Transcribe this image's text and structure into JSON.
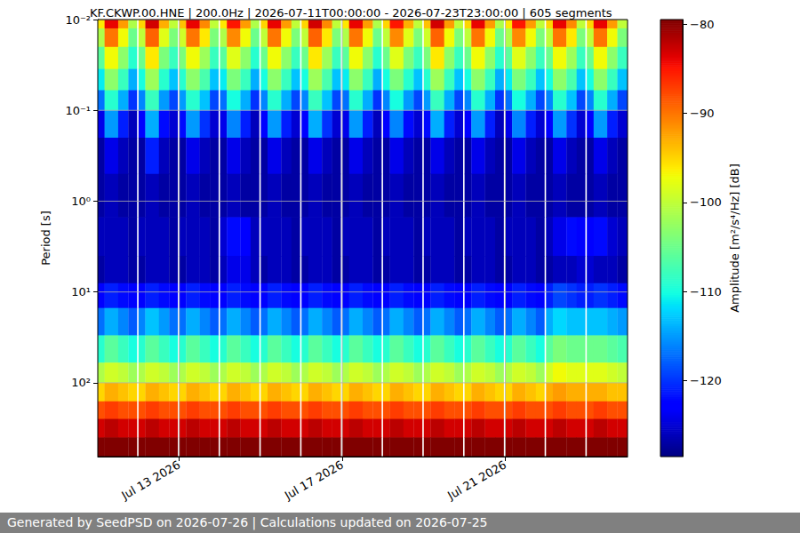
{
  "chart_data": {
    "type": "heatmap",
    "title": "KF.CKWP.00.HNE | 200.0Hz | 2026-07-11T00:00:00 - 2026-07-23T23:00:00 | 605 segments",
    "ylabel": "Period [s]",
    "footer": "Generated by SeedPSD on 2026-07-26 | Calculations updated on 2026-07-25",
    "log": "y",
    "grid": true,
    "xlim": [
      "2026-07-11T00:00",
      "2026-07-24T00:00"
    ],
    "xticks": [
      {
        "value": "2026-07-13T00:00",
        "label": "Jul 13 2026"
      },
      {
        "value": "2026-07-17T00:00",
        "label": "Jul 17 2026"
      },
      {
        "value": "2026-07-21T00:00",
        "label": "Jul 21 2026"
      }
    ],
    "ylim": [
      0.01,
      650
    ],
    "yticks": [
      {
        "value": 0.01,
        "label": "10⁻²"
      },
      {
        "value": 0.1,
        "label": "10⁻¹"
      },
      {
        "value": 1,
        "label": "10⁰"
      },
      {
        "value": 10,
        "label": "10¹"
      },
      {
        "value": 100,
        "label": "10²"
      }
    ],
    "colorbar": {
      "label": "Amplitude [m²/s⁴/Hz] [dB]",
      "range": [
        -128.5,
        -79.5
      ],
      "ticks": [
        {
          "value": -120,
          "label": "−120"
        },
        {
          "value": -110,
          "label": "−110"
        },
        {
          "value": -100,
          "label": "−100"
        },
        {
          "value": -90,
          "label": "−90"
        },
        {
          "value": -80,
          "label": "−80"
        }
      ]
    },
    "x_edges": [
      "2026-07-11T00:00",
      "2026-07-11T04:00",
      "2026-07-11T12:00",
      "2026-07-11T18:00",
      "2026-07-11T23:00",
      "2026-07-12T00:00",
      "2026-07-12T04:00",
      "2026-07-12T12:00",
      "2026-07-12T18:00",
      "2026-07-12T23:00",
      "2026-07-13T00:00",
      "2026-07-13T04:00",
      "2026-07-13T12:00",
      "2026-07-13T18:00",
      "2026-07-13T23:00",
      "2026-07-14T00:00",
      "2026-07-14T04:00",
      "2026-07-14T12:00",
      "2026-07-14T18:00",
      "2026-07-14T23:00",
      "2026-07-15T00:00",
      "2026-07-15T04:00",
      "2026-07-15T12:00",
      "2026-07-15T18:00",
      "2026-07-15T23:00",
      "2026-07-16T00:00",
      "2026-07-16T04:00",
      "2026-07-16T12:00",
      "2026-07-16T18:00",
      "2026-07-16T23:00",
      "2026-07-17T00:00",
      "2026-07-17T04:00",
      "2026-07-17T12:00",
      "2026-07-17T18:00",
      "2026-07-17T23:00",
      "2026-07-18T00:00",
      "2026-07-18T04:00",
      "2026-07-18T12:00",
      "2026-07-18T18:00",
      "2026-07-18T23:00",
      "2026-07-19T00:00",
      "2026-07-19T04:00",
      "2026-07-19T12:00",
      "2026-07-19T18:00",
      "2026-07-19T23:00",
      "2026-07-20T00:00",
      "2026-07-20T04:00",
      "2026-07-20T12:00",
      "2026-07-20T18:00",
      "2026-07-20T23:00",
      "2026-07-21T00:00",
      "2026-07-21T04:00",
      "2026-07-21T12:00",
      "2026-07-21T18:00",
      "2026-07-21T23:00",
      "2026-07-22T00:00",
      "2026-07-22T04:00",
      "2026-07-22T12:00",
      "2026-07-22T18:00",
      "2026-07-22T23:00",
      "2026-07-23T00:00",
      "2026-07-23T04:00",
      "2026-07-23T12:00",
      "2026-07-23T18:00",
      "2026-07-24T00:00"
    ],
    "y_edges": [
      0.01,
      0.0125,
      0.02,
      0.035,
      0.06,
      0.1,
      0.2,
      0.5,
      1.5,
      4,
      8,
      15,
      30,
      60,
      100,
      160,
      250,
      400,
      650
    ],
    "values": [
      [
        -96,
        -84,
        -92,
        -101,
        null,
        -95,
        -83,
        -93,
        -100,
        null,
        -94,
        -84,
        -91,
        -100,
        null,
        -96,
        -85,
        -92,
        -101,
        null,
        -95,
        -84,
        -92,
        -100,
        null,
        -95,
        -83,
        -91,
        -100,
        null,
        -96,
        -84,
        -92,
        -101,
        null,
        -95,
        -85,
        -93,
        -100,
        null,
        -94,
        -83,
        -92,
        -100,
        null,
        -95,
        -84,
        -92,
        -101,
        null,
        -96,
        -85,
        -92,
        -100,
        null,
        -95,
        -84,
        -91,
        -100,
        null,
        -95,
        -84,
        -92,
        -100
      ],
      [
        -101,
        -90,
        -97,
        -105,
        null,
        -100,
        -89,
        -98,
        -104,
        null,
        -99,
        -90,
        -96,
        -104,
        null,
        -101,
        -91,
        -97,
        -105,
        null,
        -100,
        -90,
        -97,
        -104,
        null,
        -100,
        -89,
        -96,
        -104,
        null,
        -101,
        -90,
        -97,
        -105,
        null,
        -100,
        -91,
        -98,
        -104,
        null,
        -99,
        -89,
        -97,
        -104,
        null,
        -100,
        -90,
        -97,
        -105,
        null,
        -101,
        -91,
        -97,
        -104,
        null,
        -100,
        -90,
        -96,
        -104,
        null,
        -100,
        -90,
        -97,
        -104
      ],
      [
        -106,
        -97,
        -103,
        -109,
        null,
        -105,
        -96,
        -104,
        -108,
        null,
        -104,
        -97,
        -102,
        -108,
        null,
        -106,
        -98,
        -103,
        -109,
        null,
        -105,
        -97,
        -103,
        -108,
        null,
        -105,
        -96,
        -102,
        -108,
        null,
        -106,
        -97,
        -103,
        -109,
        null,
        -105,
        -98,
        -104,
        -108,
        null,
        -104,
        -96,
        -103,
        -108,
        null,
        -105,
        -97,
        -103,
        -109,
        null,
        -106,
        -98,
        -103,
        -108,
        null,
        -105,
        -97,
        -102,
        -108,
        null,
        -105,
        -97,
        -103,
        -108
      ],
      [
        -111,
        -103,
        -108,
        -114,
        null,
        -110,
        -102,
        -109,
        -113,
        null,
        -109,
        -103,
        -107,
        -113,
        null,
        -111,
        -104,
        -108,
        -114,
        null,
        -110,
        -103,
        -108,
        -113,
        null,
        -110,
        -102,
        -107,
        -113,
        null,
        -111,
        -103,
        -108,
        -114,
        null,
        -110,
        -104,
        -109,
        -113,
        null,
        -109,
        -102,
        -108,
        -113,
        null,
        -110,
        -103,
        -108,
        -114,
        null,
        -111,
        -104,
        -108,
        -113,
        null,
        -110,
        -103,
        -107,
        -113,
        null,
        -110,
        -103,
        -108,
        -113
      ],
      [
        -117,
        -109,
        -114,
        -120,
        null,
        -116,
        -108,
        -115,
        -119,
        null,
        -115,
        -109,
        -113,
        -119,
        null,
        -117,
        -110,
        -114,
        -120,
        null,
        -116,
        -109,
        -114,
        -119,
        null,
        -116,
        -108,
        -113,
        -119,
        null,
        -117,
        -109,
        -114,
        -120,
        null,
        -116,
        -110,
        -115,
        -119,
        null,
        -115,
        -108,
        -114,
        -119,
        null,
        -116,
        -109,
        -114,
        -120,
        null,
        -117,
        -110,
        -114,
        -119,
        null,
        -116,
        -109,
        -113,
        -119,
        null,
        -116,
        -109,
        -114,
        -119
      ],
      [
        -124,
        -115,
        -121,
        -126,
        null,
        -123,
        -114,
        -122,
        -125,
        null,
        -122,
        -115,
        -120,
        -125,
        null,
        -124,
        -116,
        -121,
        -126,
        null,
        -123,
        -115,
        -121,
        -125,
        null,
        -123,
        -114,
        -120,
        -125,
        null,
        -124,
        -115,
        -121,
        -126,
        null,
        -123,
        -116,
        -122,
        -125,
        null,
        -122,
        -114,
        -121,
        -125,
        null,
        -123,
        -115,
        -121,
        -126,
        null,
        -124,
        -116,
        -121,
        -125,
        null,
        -123,
        -115,
        -120,
        -125,
        null,
        -123,
        -115,
        -121,
        -125
      ],
      [
        -127,
        -124,
        -126,
        -127,
        null,
        -127,
        -121,
        -126,
        -127,
        null,
        -127,
        -124,
        -126,
        -127,
        null,
        -127,
        -124,
        -126,
        -127,
        null,
        -127,
        -124,
        -126,
        -127,
        null,
        -127,
        -124,
        -126,
        -127,
        null,
        -127,
        -124,
        -126,
        -127,
        null,
        -127,
        -124,
        -126,
        -127,
        null,
        -127,
        -124,
        -126,
        -127,
        null,
        -127,
        -124,
        -126,
        -127,
        null,
        -127,
        -124,
        -126,
        -127,
        null,
        -127,
        -124,
        -126,
        -127,
        null,
        -127,
        -124,
        -126,
        -127
      ],
      [
        -127,
        -126,
        -127,
        -127,
        null,
        -127,
        -126,
        -127,
        -127,
        null,
        -127,
        -126,
        -127,
        -127,
        null,
        -127,
        -126,
        -127,
        -127,
        null,
        -127,
        -126,
        -127,
        -127,
        null,
        -127,
        -126,
        -127,
        -127,
        null,
        -127,
        -126,
        -127,
        -127,
        null,
        -127,
        -126,
        -127,
        -127,
        null,
        -127,
        -126,
        -127,
        -127,
        null,
        -127,
        -126,
        -127,
        -127,
        null,
        -127,
        -126,
        -127,
        -127,
        null,
        -127,
        -126,
        -127,
        -127,
        null,
        -127,
        -126,
        -127,
        -127
      ],
      [
        -126,
        -126,
        -126,
        -127,
        null,
        -126,
        -126,
        -126,
        -127,
        null,
        -126,
        -126,
        -126,
        -127,
        null,
        -125,
        -122,
        -123,
        -126,
        null,
        -126,
        -126,
        -126,
        -127,
        null,
        -126,
        -126,
        -126,
        -127,
        null,
        -126,
        -126,
        -126,
        -127,
        null,
        -126,
        -126,
        -126,
        -127,
        null,
        -126,
        -126,
        -126,
        -127,
        null,
        -126,
        -126,
        -126,
        -127,
        null,
        -126,
        -126,
        -126,
        -127,
        null,
        -126,
        -124,
        -122,
        -123,
        null,
        -123,
        -122,
        -125,
        -126
      ],
      [
        -127,
        -126,
        -126,
        -127,
        null,
        -127,
        -126,
        -126,
        -127,
        null,
        -127,
        -126,
        -126,
        -127,
        null,
        -126,
        -124,
        -124,
        -126,
        null,
        -127,
        -126,
        -126,
        -127,
        null,
        -127,
        -126,
        -126,
        -127,
        null,
        -127,
        -126,
        -126,
        -127,
        null,
        -127,
        -126,
        -126,
        -127,
        null,
        -127,
        -126,
        -126,
        -127,
        null,
        -127,
        -126,
        -126,
        -127,
        null,
        -127,
        -126,
        -126,
        -127,
        null,
        -127,
        -126,
        -126,
        -125,
        null,
        -125,
        -126,
        -126,
        -127
      ],
      [
        -123,
        -121,
        -122,
        -123,
        null,
        -123,
        -121,
        -122,
        -123,
        null,
        -123,
        -121,
        -122,
        -123,
        null,
        -123,
        -121,
        -122,
        -123,
        null,
        -123,
        -121,
        -122,
        -123,
        null,
        -123,
        -121,
        -122,
        -123,
        null,
        -123,
        -121,
        -122,
        -123,
        null,
        -123,
        -121,
        -122,
        -123,
        null,
        -123,
        -121,
        -122,
        -123,
        null,
        -123,
        -121,
        -122,
        -123,
        null,
        -123,
        -121,
        -122,
        -123,
        null,
        -121,
        -119,
        -120,
        -121,
        null,
        -121,
        -120,
        -121,
        -122
      ],
      [
        -117,
        -114,
        -116,
        -118,
        null,
        -116,
        -113,
        -115,
        -117,
        null,
        -117,
        -114,
        -116,
        -118,
        null,
        -117,
        -114,
        -116,
        -118,
        null,
        -117,
        -114,
        -116,
        -118,
        null,
        -117,
        -114,
        -116,
        -118,
        null,
        -117,
        -114,
        -116,
        -118,
        null,
        -117,
        -114,
        -116,
        -118,
        null,
        -117,
        -114,
        -116,
        -118,
        null,
        -117,
        -114,
        -116,
        -118,
        null,
        -117,
        -114,
        -116,
        -118,
        null,
        -114,
        -112,
        -113,
        -113,
        null,
        -113,
        -113,
        -114,
        -115
      ],
      [
        -109,
        -106,
        -108,
        -110,
        null,
        -109,
        -106,
        -108,
        -110,
        null,
        -109,
        -106,
        -108,
        -110,
        null,
        -109,
        -106,
        -108,
        -110,
        null,
        -109,
        -106,
        -108,
        -110,
        null,
        -109,
        -106,
        -108,
        -110,
        null,
        -109,
        -106,
        -108,
        -110,
        null,
        -109,
        -106,
        -108,
        -110,
        null,
        -109,
        -106,
        -108,
        -110,
        null,
        -109,
        -106,
        -108,
        -110,
        null,
        -109,
        -106,
        -108,
        -110,
        null,
        -106,
        -104,
        -105,
        -105,
        null,
        -105,
        -105,
        -106,
        -107
      ],
      [
        -101,
        -99,
        -100,
        -102,
        null,
        -101,
        -99,
        -100,
        -102,
        null,
        -101,
        -99,
        -100,
        -102,
        null,
        -101,
        -99,
        -100,
        -102,
        null,
        -101,
        -99,
        -100,
        -102,
        null,
        -101,
        -99,
        -100,
        -102,
        null,
        -101,
        -99,
        -100,
        -102,
        null,
        -101,
        -99,
        -100,
        -102,
        null,
        -101,
        -99,
        -100,
        -102,
        null,
        -101,
        -99,
        -100,
        -102,
        null,
        -101,
        -99,
        -100,
        -102,
        null,
        -99,
        -97,
        -98,
        -98,
        null,
        -98,
        -98,
        -99,
        -100
      ],
      [
        -95,
        -93,
        -94,
        -95,
        null,
        -95,
        -93,
        -94,
        -95,
        null,
        -95,
        -93,
        -94,
        -95,
        null,
        -95,
        -93,
        -94,
        -95,
        null,
        -95,
        -93,
        -94,
        -95,
        null,
        -95,
        -93,
        -94,
        -95,
        null,
        -95,
        -93,
        -94,
        -95,
        null,
        -95,
        -93,
        -94,
        -95,
        null,
        -95,
        -93,
        -94,
        -95,
        null,
        -95,
        -93,
        -94,
        -95,
        null,
        -95,
        -93,
        -94,
        -95,
        null,
        -93,
        -92,
        -93,
        -93,
        null,
        -93,
        -93,
        -94,
        -94
      ],
      [
        -88,
        -87,
        -88,
        -88,
        null,
        -88,
        -87,
        -88,
        -88,
        null,
        -88,
        -87,
        -88,
        -88,
        null,
        -88,
        -87,
        -88,
        -88,
        null,
        -88,
        -87,
        -88,
        -88,
        null,
        -88,
        -87,
        -88,
        -88,
        null,
        -88,
        -87,
        -88,
        -88,
        null,
        -88,
        -87,
        -88,
        -88,
        null,
        -88,
        -87,
        -88,
        -88,
        null,
        -88,
        -87,
        -88,
        -88,
        null,
        -88,
        -87,
        -88,
        -88,
        null,
        -88,
        -87,
        -88,
        -88,
        null,
        -88,
        -87,
        -88,
        -88
      ],
      [
        -83,
        -82,
        -83,
        -83,
        null,
        -83,
        -82,
        -83,
        -83,
        null,
        -83,
        -82,
        -83,
        -83,
        null,
        -83,
        -82,
        -83,
        -83,
        null,
        -83,
        -82,
        -83,
        -83,
        null,
        -83,
        -82,
        -83,
        -83,
        null,
        -83,
        -82,
        -83,
        -83,
        null,
        -83,
        -82,
        -83,
        -83,
        null,
        -83,
        -82,
        -83,
        -83,
        null,
        -83,
        -82,
        -83,
        -83,
        null,
        -83,
        -82,
        -83,
        -83,
        null,
        -83,
        -82,
        -83,
        -83,
        null,
        -83,
        -82,
        -83,
        -83
      ],
      [
        -78,
        -78,
        -78,
        -78,
        null,
        -78,
        -78,
        -78,
        -78,
        null,
        -78,
        -78,
        -78,
        -78,
        null,
        -78,
        -78,
        -78,
        -78,
        null,
        -78,
        -78,
        -78,
        -78,
        null,
        -78,
        -78,
        -78,
        -78,
        null,
        -78,
        -78,
        -78,
        -78,
        null,
        -78,
        -78,
        -78,
        -78,
        null,
        -78,
        -78,
        -78,
        -78,
        null,
        -78,
        -78,
        -78,
        -78,
        null,
        -78,
        -78,
        -78,
        -78,
        null,
        -78,
        -78,
        -78,
        -78,
        null,
        -78,
        -78,
        -78,
        -78
      ]
    ]
  }
}
